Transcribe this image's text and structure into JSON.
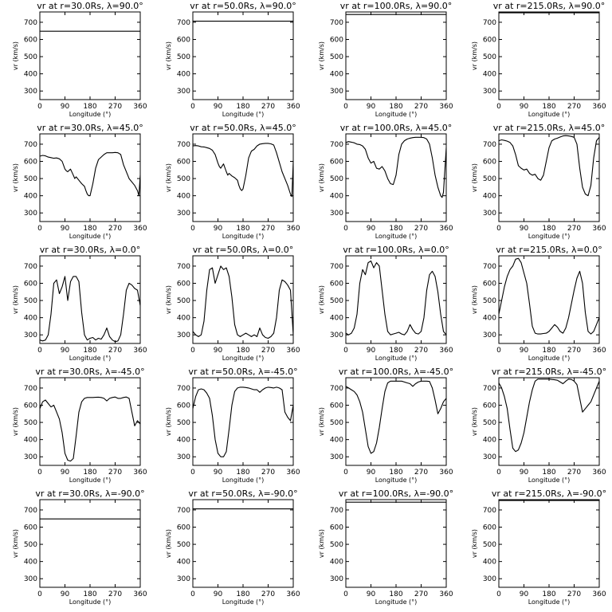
{
  "figure": {
    "xlabel": "Longitude (°)",
    "ylabel": "vr (km/s)",
    "xlim": [
      0,
      360
    ],
    "ylim": [
      250,
      760
    ],
    "xticks": [
      "0",
      "90",
      "180",
      "270",
      "360"
    ],
    "yticks": [
      "300",
      "400",
      "500",
      "600",
      "700"
    ]
  },
  "chart_data": [
    {
      "type": "line",
      "title": "vr at r=30.0Rs, λ=90.0°",
      "x": [
        0,
        360
      ],
      "y": [
        648,
        648
      ]
    },
    {
      "type": "line",
      "title": "vr at r=50.0Rs, λ=90.0°",
      "x": [
        0,
        360
      ],
      "y": [
        706,
        706
      ]
    },
    {
      "type": "line",
      "title": "vr at r=100.0Rs, λ=90.0°",
      "x": [
        0,
        360
      ],
      "y": [
        745,
        745
      ]
    },
    {
      "type": "line",
      "title": "vr at r=215.0Rs, λ=90.0°",
      "x": [
        0,
        360
      ],
      "y": [
        755,
        755
      ]
    },
    {
      "type": "line",
      "title": "vr at r=30.0Rs, λ=45.0°",
      "x": [
        0,
        10,
        20,
        30,
        40,
        50,
        60,
        70,
        80,
        90,
        95,
        100,
        110,
        120,
        125,
        130,
        140,
        150,
        160,
        165,
        170,
        175,
        180,
        190,
        200,
        210,
        220,
        230,
        240,
        250,
        260,
        270,
        280,
        290,
        300,
        320,
        340,
        350,
        355,
        360
      ],
      "y": [
        630,
        635,
        632,
        625,
        622,
        618,
        620,
        615,
        600,
        555,
        545,
        540,
        555,
        520,
        500,
        510,
        490,
        470,
        455,
        430,
        410,
        400,
        400,
        470,
        560,
        610,
        625,
        640,
        650,
        650,
        650,
        652,
        650,
        640,
        580,
        500,
        460,
        430,
        400,
        520
      ]
    },
    {
      "type": "line",
      "title": "vr at r=50.0Rs, λ=45.0°",
      "x": [
        0,
        10,
        20,
        30,
        40,
        50,
        60,
        70,
        80,
        90,
        95,
        100,
        110,
        120,
        125,
        130,
        140,
        150,
        160,
        165,
        170,
        175,
        180,
        190,
        200,
        210,
        220,
        230,
        240,
        250,
        260,
        270,
        280,
        290,
        300,
        320,
        340,
        350,
        355,
        360
      ],
      "y": [
        690,
        692,
        690,
        685,
        684,
        680,
        675,
        665,
        640,
        590,
        570,
        560,
        585,
        540,
        520,
        530,
        515,
        505,
        490,
        460,
        440,
        430,
        440,
        520,
        620,
        660,
        670,
        690,
        700,
        703,
        705,
        705,
        702,
        695,
        650,
        540,
        460,
        410,
        395,
        600
      ]
    },
    {
      "type": "line",
      "title": "vr at r=100.0Rs, λ=45.0°",
      "x": [
        0,
        10,
        20,
        30,
        40,
        50,
        60,
        70,
        80,
        90,
        100,
        110,
        120,
        130,
        140,
        150,
        160,
        170,
        180,
        190,
        200,
        210,
        220,
        230,
        240,
        250,
        260,
        270,
        280,
        290,
        300,
        310,
        320,
        330,
        340,
        345,
        350,
        360
      ],
      "y": [
        710,
        715,
        712,
        708,
        700,
        698,
        690,
        670,
        620,
        590,
        600,
        560,
        555,
        570,
        545,
        500,
        470,
        465,
        520,
        640,
        700,
        720,
        730,
        735,
        738,
        740,
        740,
        740,
        738,
        730,
        700,
        620,
        520,
        450,
        400,
        390,
        420,
        680
      ]
    },
    {
      "type": "line",
      "title": "vr at r=215.0Rs, λ=45.0°",
      "x": [
        0,
        10,
        20,
        30,
        40,
        50,
        60,
        70,
        80,
        90,
        100,
        110,
        120,
        130,
        140,
        150,
        160,
        170,
        180,
        190,
        200,
        210,
        220,
        230,
        240,
        250,
        260,
        270,
        280,
        290,
        300,
        310,
        320,
        330,
        340,
        350,
        360
      ],
      "y": [
        720,
        725,
        722,
        718,
        710,
        690,
        640,
        575,
        560,
        550,
        555,
        530,
        520,
        525,
        500,
        490,
        520,
        600,
        680,
        720,
        730,
        735,
        742,
        748,
        750,
        748,
        745,
        740,
        700,
        560,
        450,
        410,
        400,
        460,
        620,
        720,
        740
      ]
    },
    {
      "type": "line",
      "title": "vr at r=30.0Rs, λ=0.0°",
      "x": [
        0,
        10,
        20,
        30,
        40,
        50,
        60,
        70,
        80,
        90,
        100,
        110,
        120,
        130,
        140,
        150,
        160,
        170,
        180,
        190,
        200,
        210,
        220,
        230,
        240,
        250,
        260,
        270,
        280,
        290,
        300,
        310,
        320,
        330,
        340,
        350,
        360
      ],
      "y": [
        270,
        265,
        270,
        300,
        420,
        600,
        620,
        540,
        580,
        640,
        500,
        610,
        640,
        640,
        610,
        430,
        300,
        270,
        280,
        285,
        270,
        280,
        275,
        300,
        340,
        290,
        270,
        260,
        265,
        300,
        420,
        560,
        600,
        590,
        570,
        560,
        470
      ]
    },
    {
      "type": "line",
      "title": "vr at r=50.0Rs, λ=0.0°",
      "x": [
        0,
        10,
        20,
        30,
        40,
        50,
        60,
        70,
        80,
        90,
        100,
        110,
        120,
        130,
        140,
        150,
        160,
        170,
        180,
        190,
        200,
        210,
        220,
        230,
        240,
        250,
        260,
        270,
        280,
        290,
        300,
        310,
        320,
        330,
        340,
        350,
        360
      ],
      "y": [
        320,
        300,
        290,
        300,
        380,
        560,
        680,
        690,
        600,
        650,
        700,
        680,
        690,
        640,
        520,
        360,
        300,
        290,
        300,
        310,
        300,
        290,
        300,
        290,
        340,
        300,
        285,
        280,
        290,
        310,
        400,
        560,
        620,
        610,
        590,
        560,
        300
      ]
    },
    {
      "type": "line",
      "title": "vr at r=100.0Rs, λ=0.0°",
      "x": [
        0,
        10,
        20,
        30,
        40,
        50,
        60,
        70,
        80,
        90,
        100,
        110,
        120,
        130,
        140,
        150,
        160,
        170,
        180,
        190,
        200,
        210,
        220,
        230,
        240,
        250,
        260,
        270,
        280,
        290,
        300,
        310,
        320,
        330,
        340,
        350,
        360
      ],
      "y": [
        310,
        300,
        310,
        340,
        420,
        600,
        680,
        650,
        720,
        730,
        690,
        720,
        700,
        560,
        420,
        320,
        300,
        305,
        310,
        315,
        305,
        300,
        320,
        360,
        330,
        310,
        305,
        320,
        400,
        560,
        650,
        670,
        640,
        550,
        420,
        320,
        300
      ]
    },
    {
      "type": "line",
      "title": "vr at r=215.0Rs, λ=0.0°",
      "x": [
        0,
        10,
        20,
        30,
        40,
        50,
        60,
        70,
        80,
        90,
        100,
        110,
        120,
        130,
        140,
        150,
        160,
        170,
        180,
        190,
        200,
        210,
        220,
        230,
        240,
        250,
        260,
        270,
        280,
        290,
        300,
        310,
        320,
        330,
        340,
        350,
        360
      ],
      "y": [
        420,
        500,
        580,
        640,
        680,
        700,
        740,
        745,
        720,
        660,
        600,
        480,
        350,
        310,
        305,
        305,
        308,
        310,
        320,
        340,
        360,
        345,
        320,
        310,
        340,
        400,
        480,
        560,
        630,
        670,
        600,
        430,
        320,
        305,
        320,
        360,
        400
      ]
    },
    {
      "type": "line",
      "title": "vr at r=30.0Rs, λ=-45.0°",
      "x": [
        0,
        10,
        20,
        30,
        40,
        50,
        60,
        70,
        80,
        90,
        100,
        110,
        120,
        130,
        140,
        150,
        160,
        170,
        180,
        190,
        200,
        210,
        220,
        230,
        240,
        250,
        260,
        270,
        280,
        290,
        300,
        310,
        320,
        330,
        340,
        350,
        360
      ],
      "y": [
        580,
        620,
        630,
        610,
        590,
        600,
        560,
        520,
        440,
        320,
        280,
        275,
        290,
        420,
        560,
        620,
        640,
        645,
        645,
        645,
        646,
        647,
        645,
        640,
        625,
        640,
        645,
        648,
        640,
        640,
        645,
        648,
        640,
        560,
        480,
        510,
        490
      ]
    },
    {
      "type": "line",
      "title": "vr at r=50.0Rs, λ=-45.0°",
      "x": [
        0,
        10,
        20,
        30,
        40,
        50,
        60,
        70,
        80,
        90,
        100,
        110,
        120,
        130,
        140,
        150,
        160,
        170,
        180,
        190,
        200,
        210,
        220,
        230,
        240,
        250,
        260,
        270,
        280,
        290,
        300,
        310,
        320,
        330,
        340,
        350,
        360
      ],
      "y": [
        580,
        650,
        690,
        695,
        690,
        670,
        640,
        540,
        400,
        320,
        300,
        300,
        330,
        460,
        600,
        680,
        700,
        705,
        705,
        703,
        700,
        695,
        690,
        690,
        675,
        690,
        700,
        705,
        703,
        700,
        705,
        700,
        690,
        560,
        530,
        510,
        600
      ]
    },
    {
      "type": "line",
      "title": "vr at r=100.0Rs, λ=-45.0°",
      "x": [
        0,
        10,
        20,
        30,
        40,
        50,
        60,
        70,
        80,
        90,
        100,
        110,
        120,
        130,
        140,
        150,
        160,
        170,
        180,
        190,
        200,
        210,
        220,
        230,
        240,
        250,
        260,
        270,
        280,
        290,
        300,
        310,
        320,
        330,
        340,
        350,
        360
      ],
      "y": [
        710,
        700,
        690,
        680,
        660,
        620,
        560,
        460,
        360,
        320,
        330,
        380,
        470,
        580,
        680,
        730,
        740,
        740,
        740,
        740,
        740,
        735,
        730,
        725,
        710,
        725,
        735,
        740,
        740,
        740,
        738,
        700,
        630,
        550,
        580,
        620,
        640
      ]
    },
    {
      "type": "line",
      "title": "vr at r=215.0Rs, λ=-45.0°",
      "x": [
        0,
        10,
        20,
        30,
        40,
        50,
        60,
        70,
        80,
        90,
        100,
        110,
        120,
        130,
        140,
        150,
        160,
        170,
        180,
        190,
        200,
        210,
        220,
        230,
        240,
        250,
        260,
        270,
        280,
        290,
        300,
        310,
        320,
        330,
        340,
        350,
        360
      ],
      "y": [
        730,
        700,
        650,
        580,
        460,
        350,
        330,
        340,
        380,
        440,
        530,
        620,
        690,
        740,
        752,
        752,
        752,
        752,
        752,
        750,
        748,
        745,
        735,
        725,
        740,
        752,
        750,
        740,
        720,
        640,
        560,
        580,
        600,
        620,
        660,
        700,
        740
      ]
    },
    {
      "type": "line",
      "title": "vr at r=30.0Rs, λ=-90.0°",
      "x": [
        0,
        360
      ],
      "y": [
        648,
        648
      ]
    },
    {
      "type": "line",
      "title": "vr at r=50.0Rs, λ=-90.0°",
      "x": [
        0,
        360
      ],
      "y": [
        706,
        706
      ]
    },
    {
      "type": "line",
      "title": "vr at r=100.0Rs, λ=-90.0°",
      "x": [
        0,
        360
      ],
      "y": [
        745,
        745
      ]
    },
    {
      "type": "line",
      "title": "vr at r=215.0Rs, λ=-90.0°",
      "x": [
        0,
        360
      ],
      "y": [
        755,
        755
      ]
    }
  ]
}
